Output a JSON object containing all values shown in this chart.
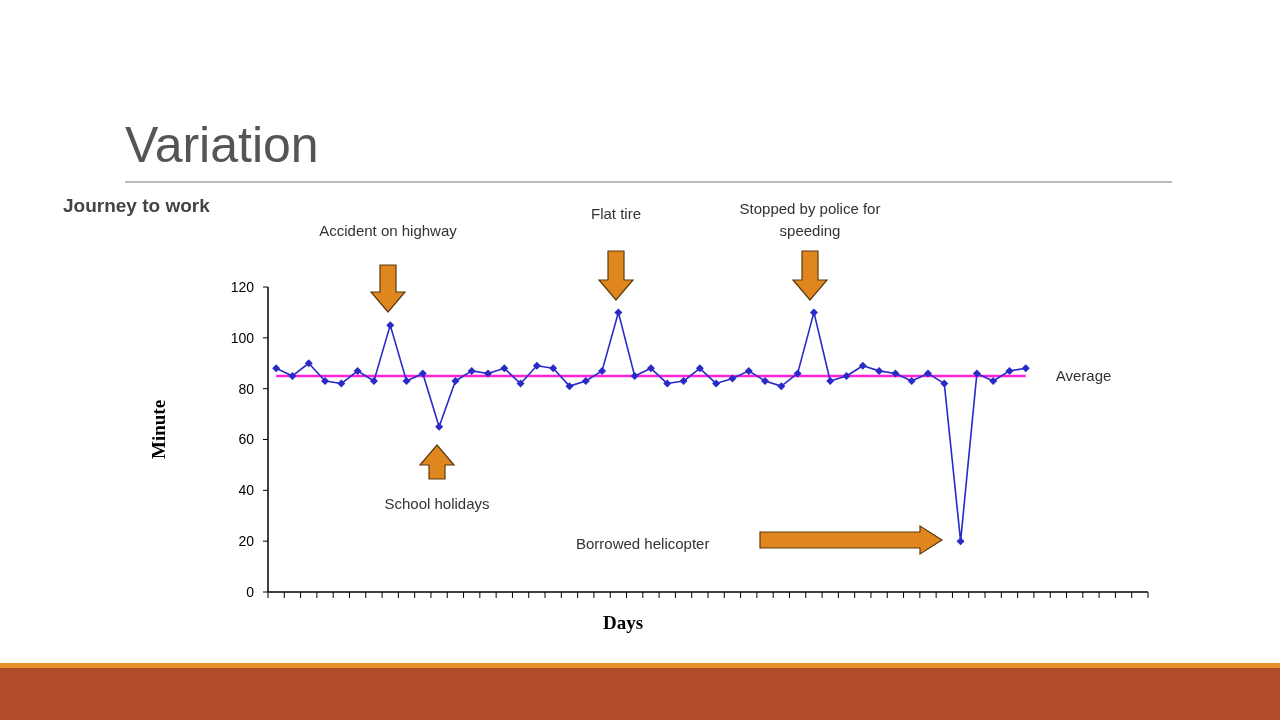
{
  "chart_data": {
    "type": "line",
    "title": "Variation",
    "subtitle": "Journey to work",
    "xlabel": "Days",
    "ylabel": "Minute",
    "categories": [
      null,
      null,
      null,
      null,
      null,
      null,
      null,
      null,
      null,
      null,
      null,
      null,
      null,
      null,
      null,
      null,
      null,
      null,
      null,
      null,
      null,
      null,
      null,
      null,
      null,
      null,
      null,
      null,
      null,
      null,
      null,
      null,
      null,
      null,
      null,
      null,
      null,
      null,
      null,
      null,
      null,
      null,
      null,
      null,
      null,
      null,
      null,
      null,
      null,
      null,
      null,
      null,
      null,
      null
    ],
    "series": [
      {
        "color": "#2a2ac8",
        "values": [
          88,
          85,
          90,
          83,
          82,
          87,
          83,
          105,
          83,
          86,
          65,
          83,
          87,
          86,
          88,
          82,
          89,
          88,
          81,
          83,
          87,
          110,
          85,
          88,
          82,
          83,
          88,
          82,
          84,
          87,
          83,
          81,
          86,
          110,
          83,
          85,
          89,
          87,
          86,
          83,
          86,
          82,
          20,
          86,
          83,
          87,
          88,
          null,
          null,
          null,
          null,
          null,
          null,
          null
        ]
      }
    ],
    "ylim": [
      0,
      120
    ],
    "yticks": [
      0,
      20,
      40,
      60,
      80,
      100,
      120
    ],
    "grid": false,
    "marker": "diamond",
    "line_style": "solid",
    "ref_lines": [
      {
        "axis": "y",
        "value": 85,
        "label": "Average",
        "color": "#ff22dd"
      }
    ],
    "annotations": [
      "Accident on highway",
      "School holidays",
      "Flat tire",
      "Stopped by police  for speeding",
      "Borrowed helicopter"
    ]
  }
}
